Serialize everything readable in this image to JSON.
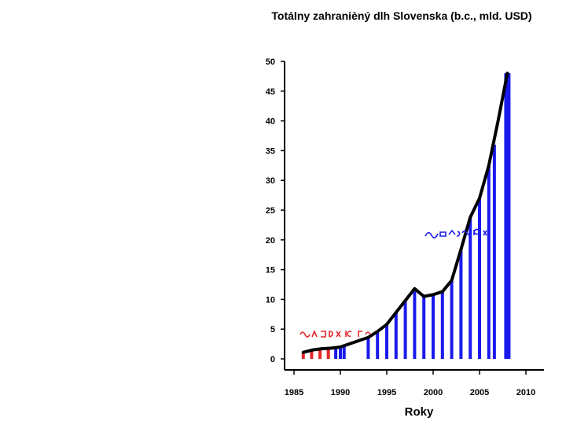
{
  "chart_data": {
    "type": "bar",
    "title": "Totálny zahranièný dlh Slovenska (b.c., mld. USD)",
    "xlabel": "Roky",
    "ylabel": "",
    "xlim": [
      1984,
      2011
    ],
    "ylim": [
      0,
      50
    ],
    "x_ticks": [
      1985,
      1990,
      1995,
      2000,
      2005,
      2010
    ],
    "y_ticks": [
      0,
      5,
      10,
      15,
      20,
      25,
      30,
      35,
      40,
      45,
      50
    ],
    "grid": false,
    "colors": {
      "line": "#000000",
      "bar_early": "#e8262b",
      "bar_late": "#1a1aee"
    },
    "line": {
      "x": [
        1986,
        1987,
        1988,
        1989,
        1990,
        1993,
        1994,
        1995,
        1996,
        1997,
        1998,
        1999,
        2000,
        2001,
        2002,
        2003,
        2004,
        2005,
        2006,
        2007,
        2008
      ],
      "values": [
        1.1,
        1.5,
        1.7,
        1.8,
        2.0,
        3.6,
        4.6,
        5.8,
        7.8,
        9.8,
        11.8,
        10.5,
        10.8,
        11.3,
        13.2,
        18.4,
        23.8,
        27.0,
        32.5,
        40.0,
        48.0
      ]
    },
    "bars": [
      {
        "x": 1986.0,
        "value": 1.1,
        "group": "early"
      },
      {
        "x": 1986.9,
        "value": 1.4,
        "group": "early"
      },
      {
        "x": 1987.8,
        "value": 1.7,
        "group": "early"
      },
      {
        "x": 1988.7,
        "value": 1.8,
        "group": "early"
      },
      {
        "x": 1989.5,
        "value": 1.9,
        "group": "late"
      },
      {
        "x": 1990.0,
        "value": 2.0,
        "group": "late"
      },
      {
        "x": 1990.4,
        "value": 2.1,
        "group": "late"
      },
      {
        "x": 1993.0,
        "value": 3.6,
        "group": "late"
      },
      {
        "x": 1994.0,
        "value": 4.6,
        "group": "late"
      },
      {
        "x": 1995.0,
        "value": 5.8,
        "group": "late"
      },
      {
        "x": 1996.0,
        "value": 7.8,
        "group": "late"
      },
      {
        "x": 1997.0,
        "value": 9.8,
        "group": "late"
      },
      {
        "x": 1998.0,
        "value": 11.8,
        "group": "late"
      },
      {
        "x": 1999.0,
        "value": 10.5,
        "group": "late"
      },
      {
        "x": 2000.0,
        "value": 10.8,
        "group": "late"
      },
      {
        "x": 2001.0,
        "value": 11.3,
        "group": "late"
      },
      {
        "x": 2002.0,
        "value": 13.2,
        "group": "late"
      },
      {
        "x": 2003.0,
        "value": 18.4,
        "group": "late"
      },
      {
        "x": 2004.0,
        "value": 23.8,
        "group": "late"
      },
      {
        "x": 2005.0,
        "value": 27.0,
        "group": "late"
      },
      {
        "x": 2006.0,
        "value": 32.5,
        "group": "late"
      },
      {
        "x": 2006.6,
        "value": 36.0,
        "group": "late"
      },
      {
        "x": 2008.0,
        "value": 48.0,
        "group": "late"
      }
    ]
  }
}
